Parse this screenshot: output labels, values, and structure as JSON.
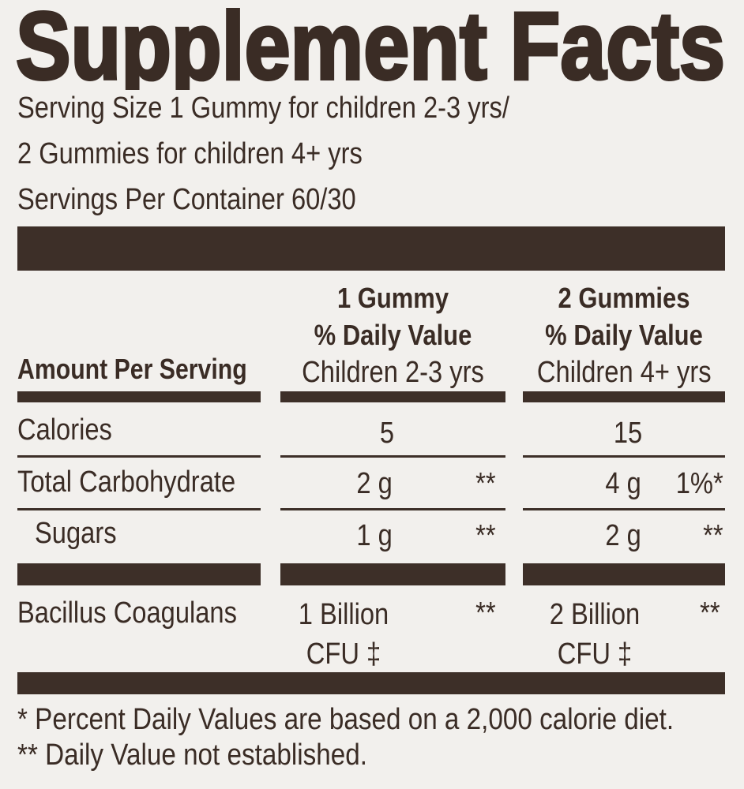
{
  "title": "Supplement Facts",
  "serving_size_line1": "Serving Size 1 Gummy for children 2-3 yrs/",
  "serving_size_line2": "2 Gummies for children 4+ yrs",
  "servings_per_container": "Servings Per Container 60/30",
  "header": {
    "amount_per_serving": "Amount Per Serving",
    "col1": {
      "line1": "1 Gummy",
      "line2": "% Daily Value",
      "line3": "Children 2-3 yrs"
    },
    "col2": {
      "line1": "2 Gummies",
      "line2": "% Daily Value",
      "line3": "Children 4+ yrs"
    }
  },
  "rows": [
    {
      "name": "Calories",
      "col1_amount": "5",
      "col1_dv": "",
      "col2_amount": "15",
      "col2_dv": ""
    },
    {
      "name": "Total Carbohydrate",
      "col1_amount": "2 g",
      "col1_dv": "**",
      "col2_amount": "4 g",
      "col2_dv": "1%*"
    },
    {
      "name": "Sugars",
      "col1_amount": "1 g",
      "col1_dv": "**",
      "col2_amount": "2 g",
      "col2_dv": "**"
    },
    {
      "name": "Bacillus Coagulans",
      "col1_amount": "1 Billion",
      "col1_unit": "CFU ‡",
      "col1_dv": "**",
      "col2_amount": "2 Billion",
      "col2_unit": "CFU ‡",
      "col2_dv": "**"
    }
  ],
  "footnotes": [
    "* Percent Daily Values are based on a 2,000 calorie diet.",
    "** Daily Value not established."
  ],
  "colors": {
    "background": "#f2f0ed",
    "ink": "#3a2c25"
  }
}
